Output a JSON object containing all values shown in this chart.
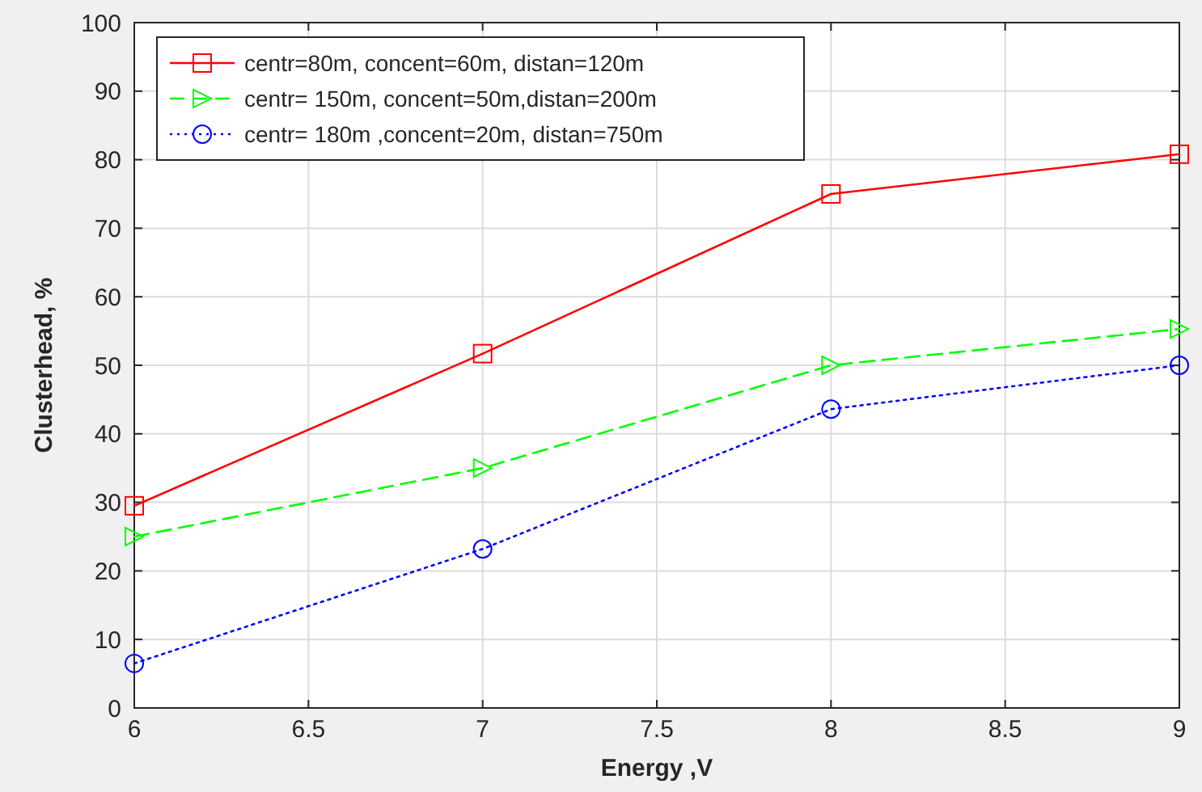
{
  "chart_data": {
    "type": "line",
    "xlabel": "Energy ,V",
    "ylabel": "Clusterhead, %",
    "x": [
      6,
      7,
      8,
      9
    ],
    "series": [
      {
        "name": "centr=80m, concent=60m, distan=120m",
        "color": "#ff0000",
        "values": [
          29.5,
          51.7,
          75,
          80.8
        ],
        "marker": "square",
        "line_style": "solid"
      },
      {
        "name": "centr= 150m, concent=50m,distan=200m",
        "color": "#00ff00",
        "values": [
          25,
          35,
          50,
          55.3
        ],
        "marker": "triangle",
        "line_style": "dashed"
      },
      {
        "name": "centr= 180m ,concent=20m, distan=750m",
        "color": "#0000ff",
        "values": [
          6.5,
          23.2,
          43.6,
          50
        ],
        "marker": "circle",
        "line_style": "dotted"
      }
    ],
    "xlim": [
      6,
      9
    ],
    "xticks": [
      6,
      6.5,
      7,
      7.5,
      8,
      8.5,
      9
    ],
    "ylim": [
      0,
      100
    ],
    "yticks": [
      0,
      10,
      20,
      30,
      40,
      50,
      60,
      70,
      80,
      90,
      100
    ],
    "grid": true,
    "legend": "top left"
  }
}
